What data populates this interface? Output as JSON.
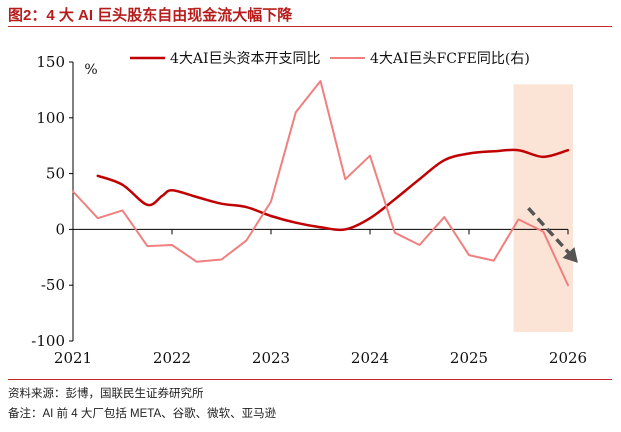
{
  "title": "图2：4 大 AI 巨头股东自由现金流大幅下降",
  "source": "资料来源：彭博，国联民生证券研究所",
  "note": "备注：AI 前 4 大厂包括 META、谷歌、微软、亚马逊",
  "chart_data": {
    "type": "line",
    "y_unit_label": "%",
    "ylim": [
      -100,
      150
    ],
    "yticks": [
      -100,
      -50,
      0,
      50,
      100,
      150
    ],
    "xlim": [
      2021,
      2026
    ],
    "xticks": [
      "2021",
      "2022",
      "2023",
      "2024",
      "2025",
      "2026"
    ],
    "legend_position": "top",
    "forecast_shade": [
      2025.45,
      2026.05
    ],
    "forecast_color": "#fbe3d6",
    "arrow": {
      "from": [
        2025.6,
        19
      ],
      "to": [
        2026.1,
        -30
      ],
      "color": "#555555"
    },
    "series": [
      {
        "name": "4大AI巨头资本开支同比",
        "color": "#c00000",
        "axis": "left",
        "points": [
          [
            2021.25,
            48
          ],
          [
            2021.5,
            40
          ],
          [
            2021.75,
            22
          ],
          [
            2021.9,
            30
          ],
          [
            2022.0,
            35
          ],
          [
            2022.25,
            29
          ],
          [
            2022.5,
            23
          ],
          [
            2022.75,
            20
          ],
          [
            2023.0,
            12
          ],
          [
            2023.25,
            6
          ],
          [
            2023.5,
            2
          ],
          [
            2023.75,
            0
          ],
          [
            2024.0,
            10
          ],
          [
            2024.25,
            27
          ],
          [
            2024.5,
            45
          ],
          [
            2024.75,
            62
          ],
          [
            2025.0,
            68
          ],
          [
            2025.25,
            70
          ],
          [
            2025.5,
            71
          ],
          [
            2025.75,
            65
          ],
          [
            2026.0,
            71
          ]
        ]
      },
      {
        "name": "4大AI巨头FCFE同比(右)",
        "color": "#f08080",
        "axis": "right",
        "points": [
          [
            2021.0,
            34
          ],
          [
            2021.25,
            10
          ],
          [
            2021.5,
            17
          ],
          [
            2021.75,
            -15
          ],
          [
            2022.0,
            -14
          ],
          [
            2022.25,
            -29
          ],
          [
            2022.5,
            -27
          ],
          [
            2022.75,
            -10
          ],
          [
            2023.0,
            25
          ],
          [
            2023.25,
            105
          ],
          [
            2023.5,
            133
          ],
          [
            2023.75,
            45
          ],
          [
            2024.0,
            66
          ],
          [
            2024.25,
            -3
          ],
          [
            2024.5,
            -14
          ],
          [
            2024.75,
            11
          ],
          [
            2025.0,
            -23
          ],
          [
            2025.25,
            -28
          ],
          [
            2025.5,
            9
          ],
          [
            2025.75,
            -2
          ],
          [
            2026.0,
            -50
          ]
        ]
      }
    ]
  }
}
